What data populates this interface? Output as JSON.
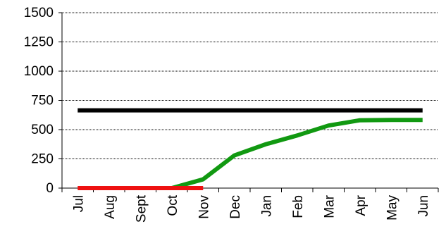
{
  "chart_data": {
    "type": "line",
    "title": "",
    "xlabel": "",
    "ylabel": "",
    "categories": [
      "Jul",
      "Aug",
      "Sept",
      "Oct",
      "Nov",
      "Dec",
      "Jan",
      "Feb",
      "Mar",
      "Apr",
      "May",
      "Jun"
    ],
    "ylim": [
      0,
      1500
    ],
    "yticks": [
      "0",
      "250",
      "500",
      "750",
      "1000",
      "1250",
      "1500"
    ],
    "grid": true,
    "legend": "none",
    "series": [
      {
        "color": "#000000",
        "values": [
          665,
          665,
          665,
          665,
          665,
          665,
          665,
          665,
          665,
          665,
          665,
          665
        ]
      },
      {
        "color": "#119911",
        "values": [
          null,
          null,
          null,
          0,
          75,
          280,
          375,
          450,
          535,
          580,
          583,
          583
        ]
      },
      {
        "color": "#ee1111",
        "values": [
          0,
          0,
          0,
          0,
          0,
          null,
          null,
          null,
          null,
          null,
          null,
          null
        ]
      }
    ]
  }
}
